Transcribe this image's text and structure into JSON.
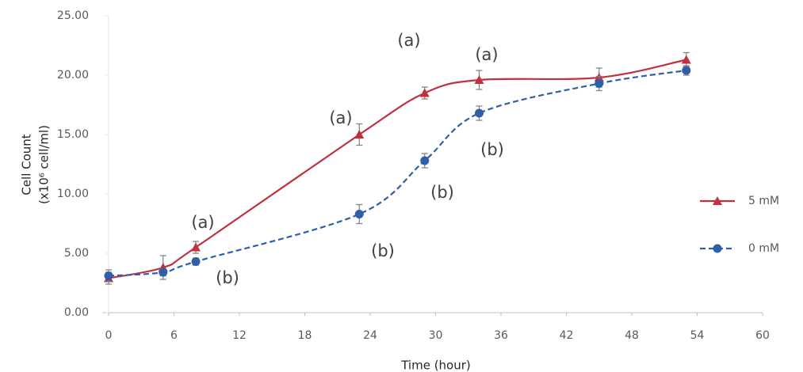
{
  "chart_data": {
    "type": "scatter",
    "x_label": "Time (hour)",
    "y_label": [
      "Cell Count",
      "(x10⁶ cell/ml)"
    ],
    "x": [
      0,
      5,
      8,
      23,
      29,
      34,
      45,
      53
    ],
    "series": [
      {
        "name": "5 mM",
        "color": "#c0313f",
        "marker": "triangle",
        "dashed": false,
        "values": [
          2.9,
          3.8,
          5.5,
          15.0,
          18.5,
          19.6,
          19.8,
          21.3
        ],
        "errors": [
          0.5,
          1.0,
          0.5,
          0.9,
          0.5,
          0.8,
          0.8,
          0.6
        ]
      },
      {
        "name": "0 mM",
        "color": "#2e5fa8",
        "marker": "circle",
        "dashed": true,
        "values": [
          3.1,
          3.4,
          4.3,
          8.3,
          12.8,
          16.8,
          19.3,
          20.4
        ],
        "errors": [
          0.5,
          0.3,
          0.3,
          0.8,
          0.6,
          0.6,
          0.6,
          0.4
        ]
      }
    ],
    "annotations": [
      "(a)",
      "(b)",
      "(a)",
      "(b)",
      "(a)",
      "(b)",
      "(b)",
      "(a)"
    ],
    "xlim": [
      0,
      60
    ],
    "xticks": [
      0,
      6,
      12,
      18,
      24,
      30,
      36,
      42,
      48,
      54,
      60
    ],
    "ylim": [
      0,
      25
    ],
    "yticks": [
      {
        "value": 0,
        "label": "0.00"
      },
      {
        "value": 5,
        "label": "5.00"
      },
      {
        "value": 10,
        "label": "10.00"
      },
      {
        "value": 15,
        "label": "15.00"
      },
      {
        "value": 20,
        "label": "20.00"
      },
      {
        "value": 25,
        "label": "25.00"
      }
    ],
    "legend": "right",
    "grid": false
  }
}
